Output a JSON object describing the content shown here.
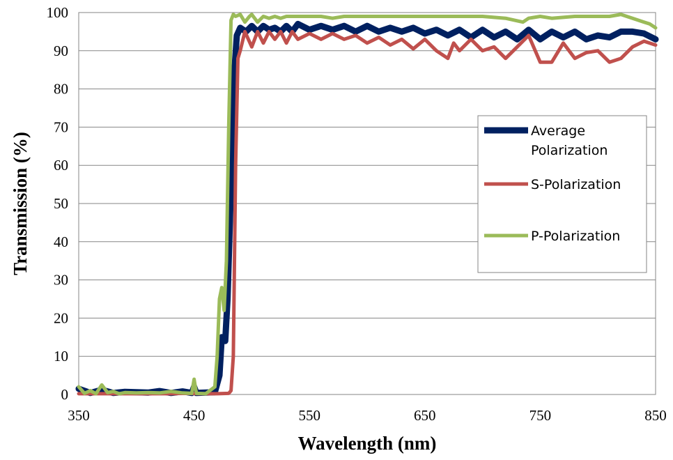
{
  "chart_data": {
    "type": "line",
    "title": "",
    "xlabel": "Wavelength (nm)",
    "ylabel": "Transmission (%)",
    "xlim": [
      350,
      850
    ],
    "ylim": [
      0,
      100
    ],
    "xticks": [
      "350",
      "450",
      "550",
      "650",
      "750",
      "850"
    ],
    "yticks": [
      "0",
      "10",
      "20",
      "30",
      "40",
      "50",
      "60",
      "70",
      "80",
      "90",
      "100"
    ],
    "grid": "horizontal",
    "legend_position": "right",
    "series": [
      {
        "name": "Average Polarization",
        "color": "#002060",
        "points": [
          [
            350,
            1.5
          ],
          [
            360,
            0.4
          ],
          [
            370,
            1.2
          ],
          [
            380,
            0.4
          ],
          [
            390,
            0.7
          ],
          [
            400,
            0.6
          ],
          [
            410,
            0.5
          ],
          [
            420,
            0.9
          ],
          [
            430,
            0.4
          ],
          [
            440,
            0.8
          ],
          [
            448,
            0.4
          ],
          [
            450,
            2
          ],
          [
            452,
            0.4
          ],
          [
            460,
            0.5
          ],
          [
            468,
            0.6
          ],
          [
            472,
            5
          ],
          [
            474,
            15
          ],
          [
            477,
            14
          ],
          [
            479,
            25
          ],
          [
            482,
            55
          ],
          [
            485,
            85
          ],
          [
            487,
            94
          ],
          [
            490,
            96
          ],
          [
            495,
            95
          ],
          [
            500,
            96.5
          ],
          [
            505,
            95
          ],
          [
            510,
            96.5
          ],
          [
            515,
            95.5
          ],
          [
            520,
            96
          ],
          [
            525,
            95
          ],
          [
            530,
            96.5
          ],
          [
            535,
            95
          ],
          [
            540,
            97
          ],
          [
            550,
            95.5
          ],
          [
            560,
            96.5
          ],
          [
            570,
            95.5
          ],
          [
            580,
            96.5
          ],
          [
            590,
            95
          ],
          [
            600,
            96.5
          ],
          [
            610,
            95
          ],
          [
            620,
            96
          ],
          [
            630,
            95
          ],
          [
            640,
            96
          ],
          [
            650,
            94.5
          ],
          [
            660,
            95.5
          ],
          [
            670,
            94
          ],
          [
            680,
            95.5
          ],
          [
            690,
            93.5
          ],
          [
            700,
            95.5
          ],
          [
            710,
            93.5
          ],
          [
            720,
            95
          ],
          [
            730,
            93
          ],
          [
            740,
            95.5
          ],
          [
            750,
            93
          ],
          [
            760,
            95
          ],
          [
            770,
            93.5
          ],
          [
            780,
            95
          ],
          [
            790,
            93
          ],
          [
            800,
            94
          ],
          [
            810,
            93.5
          ],
          [
            820,
            95
          ],
          [
            830,
            95
          ],
          [
            840,
            94.5
          ],
          [
            850,
            93
          ]
        ]
      },
      {
        "name": "S-Polarization",
        "color": "#C0504D",
        "points": [
          [
            350,
            0.2
          ],
          [
            380,
            0.2
          ],
          [
            400,
            0.2
          ],
          [
            430,
            0.2
          ],
          [
            440,
            0.3
          ],
          [
            460,
            0.2
          ],
          [
            470,
            0.2
          ],
          [
            480,
            0.3
          ],
          [
            482,
            1
          ],
          [
            484,
            10
          ],
          [
            486,
            60
          ],
          [
            488,
            88
          ],
          [
            490,
            90
          ],
          [
            494,
            95
          ],
          [
            500,
            91
          ],
          [
            505,
            95
          ],
          [
            510,
            92
          ],
          [
            515,
            95
          ],
          [
            520,
            93
          ],
          [
            525,
            95
          ],
          [
            530,
            92
          ],
          [
            535,
            95
          ],
          [
            540,
            93
          ],
          [
            550,
            94.5
          ],
          [
            560,
            93
          ],
          [
            570,
            94.5
          ],
          [
            580,
            93
          ],
          [
            590,
            94
          ],
          [
            600,
            92
          ],
          [
            610,
            93.5
          ],
          [
            620,
            91.5
          ],
          [
            630,
            93
          ],
          [
            640,
            90.5
          ],
          [
            650,
            93
          ],
          [
            660,
            90
          ],
          [
            670,
            88
          ],
          [
            675,
            92
          ],
          [
            680,
            90
          ],
          [
            690,
            93
          ],
          [
            700,
            90
          ],
          [
            710,
            91
          ],
          [
            720,
            88
          ],
          [
            730,
            91
          ],
          [
            740,
            94
          ],
          [
            750,
            87
          ],
          [
            760,
            87
          ],
          [
            770,
            92
          ],
          [
            780,
            88
          ],
          [
            790,
            89.5
          ],
          [
            800,
            90
          ],
          [
            810,
            87
          ],
          [
            820,
            88
          ],
          [
            830,
            91
          ],
          [
            840,
            92.5
          ],
          [
            850,
            91.5
          ]
        ]
      },
      {
        "name": "P-Polarization",
        "color": "#9BBB59",
        "points": [
          [
            350,
            2
          ],
          [
            355,
            0.3
          ],
          [
            360,
            1
          ],
          [
            365,
            0.2
          ],
          [
            370,
            2.5
          ],
          [
            375,
            0.5
          ],
          [
            380,
            0.8
          ],
          [
            385,
            0.2
          ],
          [
            390,
            0.5
          ],
          [
            400,
            0.4
          ],
          [
            410,
            0.5
          ],
          [
            420,
            0.4
          ],
          [
            430,
            0.8
          ],
          [
            440,
            0.4
          ],
          [
            448,
            0.3
          ],
          [
            450,
            4
          ],
          [
            452,
            0.3
          ],
          [
            460,
            0.2
          ],
          [
            468,
            2
          ],
          [
            470,
            10
          ],
          [
            472,
            25
          ],
          [
            474,
            28
          ],
          [
            476,
            22
          ],
          [
            478,
            35
          ],
          [
            480,
            70
          ],
          [
            482,
            98
          ],
          [
            484,
            99.5
          ],
          [
            486,
            99
          ],
          [
            490,
            99.5
          ],
          [
            494,
            97.5
          ],
          [
            498,
            99
          ],
          [
            500,
            99.5
          ],
          [
            505,
            97.5
          ],
          [
            510,
            99
          ],
          [
            515,
            98.5
          ],
          [
            520,
            99
          ],
          [
            525,
            98.5
          ],
          [
            530,
            99
          ],
          [
            540,
            99
          ],
          [
            550,
            99
          ],
          [
            560,
            99
          ],
          [
            570,
            98.5
          ],
          [
            580,
            99
          ],
          [
            600,
            99
          ],
          [
            620,
            99
          ],
          [
            640,
            99
          ],
          [
            660,
            99
          ],
          [
            680,
            99
          ],
          [
            700,
            99
          ],
          [
            720,
            98.5
          ],
          [
            735,
            97.5
          ],
          [
            740,
            98.5
          ],
          [
            750,
            99
          ],
          [
            760,
            98.5
          ],
          [
            780,
            99
          ],
          [
            800,
            99
          ],
          [
            810,
            99
          ],
          [
            820,
            99.5
          ],
          [
            830,
            98.5
          ],
          [
            840,
            97.5
          ],
          [
            845,
            97
          ],
          [
            850,
            96
          ]
        ]
      }
    ]
  }
}
